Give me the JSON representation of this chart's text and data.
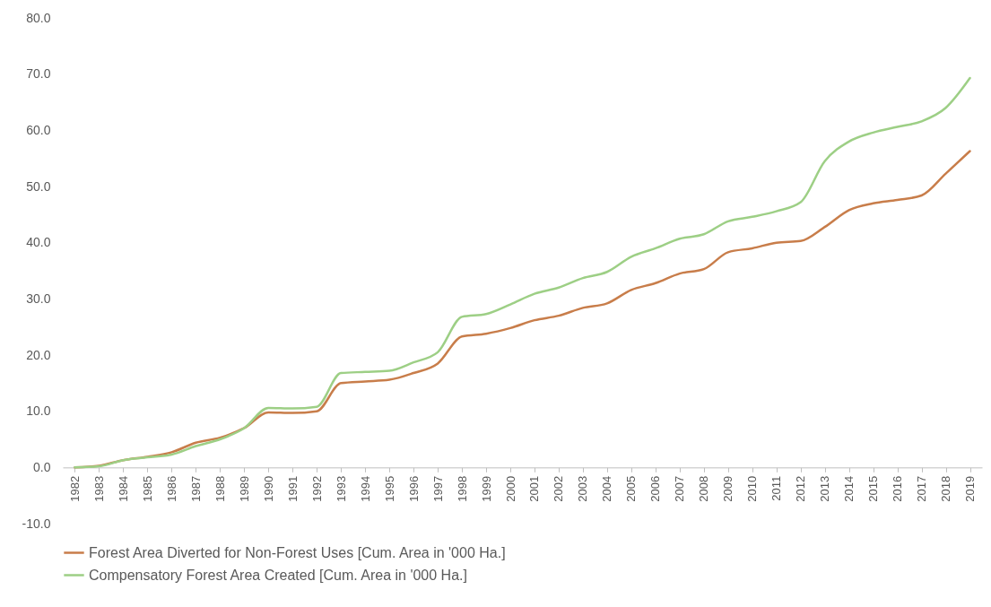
{
  "chart_data": {
    "type": "line",
    "categories": [
      "1982",
      "1983",
      "1984",
      "1985",
      "1986",
      "1987",
      "1988",
      "1989",
      "1990",
      "1991",
      "1992",
      "1993",
      "1994",
      "1995",
      "1996",
      "1997",
      "1998",
      "1999",
      "2000",
      "2001",
      "2002",
      "2003",
      "2004",
      "2005",
      "2006",
      "2007",
      "2008",
      "2009",
      "2010",
      "2011",
      "2012",
      "2013",
      "2014",
      "2015",
      "2016",
      "2017",
      "2018",
      "2019"
    ],
    "series": [
      {
        "name": "Forest Area Diverted for Non-Forest Uses [Cum. Area in '000 Ha.]",
        "color": "#c87d4a",
        "values": [
          0,
          0.3,
          1.3,
          1.9,
          2.7,
          4.4,
          5.3,
          7.0,
          9.8,
          9.7,
          10.0,
          15.0,
          15.3,
          15.6,
          16.8,
          18.5,
          23.3,
          23.8,
          24.8,
          26.2,
          27.0,
          28.4,
          29.2,
          31.6,
          32.8,
          34.5,
          35.3,
          38.3,
          39.0,
          40.0,
          40.3,
          42.8,
          45.8,
          47.0,
          47.6,
          48.4,
          52.3,
          56.3
        ]
      },
      {
        "name": "Compensatory Forest Area Created [Cum. Area in '000 Ha.]",
        "color": "#9dcf85",
        "values": [
          0,
          0.2,
          1.3,
          1.8,
          2.3,
          3.8,
          5.0,
          7.0,
          10.6,
          10.5,
          10.8,
          16.8,
          17.0,
          17.2,
          18.7,
          20.5,
          26.8,
          27.3,
          29.0,
          30.9,
          32.0,
          33.7,
          34.8,
          37.5,
          39.0,
          40.7,
          41.5,
          43.8,
          44.6,
          45.6,
          47.2,
          54.5,
          58.0,
          59.6,
          60.6,
          61.6,
          64.0,
          69.3
        ]
      }
    ],
    "ylim": [
      -10,
      80
    ],
    "yticks": [
      {
        "value": -10,
        "label": "-10.0"
      },
      {
        "value": 0,
        "label": "0.0"
      },
      {
        "value": 10,
        "label": "10.0"
      },
      {
        "value": 20,
        "label": "20.0"
      },
      {
        "value": 30,
        "label": "30.0"
      },
      {
        "value": 40,
        "label": "40.0"
      },
      {
        "value": 50,
        "label": "50.0"
      },
      {
        "value": 60,
        "label": "60.0"
      },
      {
        "value": 70,
        "label": "70.0"
      },
      {
        "value": 80,
        "label": "80.0"
      }
    ],
    "legend": "bottom",
    "line_style": "solid"
  }
}
